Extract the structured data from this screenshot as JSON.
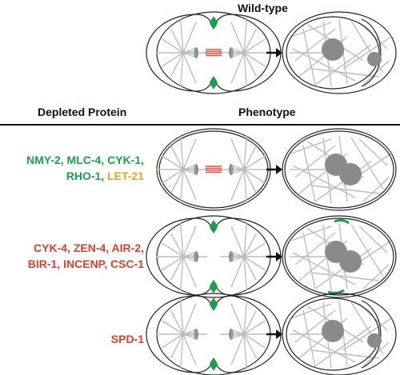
{
  "header": {
    "wildtype_label": "Wild-type",
    "depleted_label": "Depleted Protein",
    "phenotype_label": "Phenotype"
  },
  "rows": [
    {
      "id": "wildtype",
      "proteins": []
    },
    {
      "id": "row1",
      "proteins": [
        [
          {
            "text": "NMY-2, MLC-4, CYK-1,",
            "color": "green"
          }
        ],
        [
          {
            "text": "RHO-1, ",
            "color": "green"
          },
          {
            "text": "LET-21",
            "color": "orange"
          }
        ]
      ]
    },
    {
      "id": "row2",
      "proteins": [
        [
          {
            "text": "CYK-4, ZEN-4, AIR-2,",
            "color": "red"
          }
        ],
        [
          {
            "text": "BIR-1, INCENP, CSC-1",
            "color": "red"
          }
        ]
      ]
    },
    {
      "id": "row3",
      "proteins": [
        [
          {
            "text": "SPD-1",
            "color": "red"
          }
        ]
      ]
    }
  ],
  "colors": {
    "green": "#1aa04a",
    "orange": "#f0a020",
    "red": "#d9412f",
    "microtubule": "#bdbdbd",
    "spindle_gray": "#8a8a8a",
    "midzone_red": "#e84a3c"
  },
  "icons": [
    "arrow-right-icon"
  ]
}
